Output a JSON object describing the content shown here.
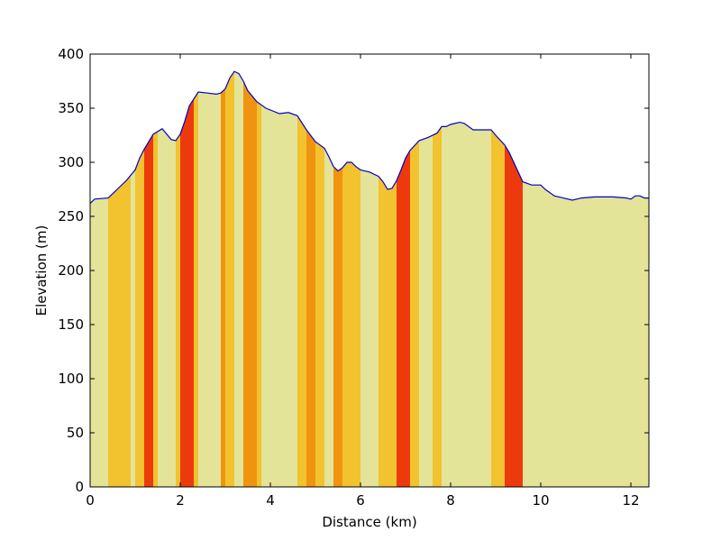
{
  "chart_data": {
    "type": "area",
    "title": "",
    "xlabel": "Distance (km)",
    "ylabel": "Elevation (m)",
    "xlim": [
      0,
      12.4
    ],
    "ylim": [
      0,
      400
    ],
    "xticks": [
      0,
      2,
      4,
      6,
      8,
      10,
      12
    ],
    "yticks": [
      0,
      50,
      100,
      150,
      200,
      250,
      300,
      350,
      400
    ],
    "grid": false,
    "line_color": "#0000cc",
    "profile": {
      "x": [
        0.0,
        0.1,
        0.4,
        0.6,
        0.8,
        1.0,
        1.1,
        1.2,
        1.4,
        1.6,
        1.8,
        1.9,
        2.0,
        2.1,
        2.2,
        2.4,
        2.6,
        2.8,
        2.9,
        3.0,
        3.1,
        3.2,
        3.3,
        3.4,
        3.5,
        3.7,
        3.9,
        4.2,
        4.4,
        4.6,
        4.8,
        5.0,
        5.2,
        5.3,
        5.4,
        5.5,
        5.6,
        5.7,
        5.8,
        5.9,
        6.0,
        6.2,
        6.4,
        6.5,
        6.6,
        6.7,
        6.8,
        6.9,
        7.0,
        7.1,
        7.3,
        7.5,
        7.7,
        7.8,
        7.9,
        8.0,
        8.2,
        8.3,
        8.5,
        8.7,
        8.9,
        9.0,
        9.2,
        9.3,
        9.5,
        9.6,
        9.8,
        10.0,
        10.1,
        10.3,
        10.5,
        10.7,
        10.9,
        11.2,
        11.4,
        11.6,
        11.9,
        12.0,
        12.1,
        12.2,
        12.3,
        12.4
      ],
      "y": [
        262,
        266,
        267,
        275,
        283,
        293,
        304,
        312,
        326,
        331,
        321,
        320,
        326,
        338,
        352,
        365,
        364,
        363,
        364,
        368,
        378,
        384,
        382,
        375,
        366,
        356,
        350,
        345,
        346,
        343,
        330,
        319,
        313,
        305,
        296,
        292,
        295,
        300,
        300,
        296,
        293,
        291,
        287,
        282,
        275,
        276,
        283,
        293,
        304,
        311,
        320,
        323,
        327,
        333,
        333,
        335,
        337,
        336,
        330,
        330,
        330,
        325,
        316,
        309,
        291,
        282,
        279,
        279,
        275,
        269,
        267,
        265,
        267,
        268,
        268,
        268,
        267,
        266,
        269,
        269,
        267,
        267
      ]
    },
    "bands": {
      "x_start": [
        0.0,
        0.4,
        0.9,
        1.0,
        1.2,
        1.4,
        1.5,
        1.9,
        2.0,
        2.3,
        2.4,
        2.9,
        3.0,
        3.2,
        3.4,
        3.7,
        3.8,
        4.6,
        4.8,
        5.0,
        5.2,
        5.4,
        5.6,
        6.0,
        6.4,
        6.8,
        7.1,
        7.3,
        7.6,
        7.8,
        8.9,
        9.2,
        9.6
      ],
      "x_end": [
        0.4,
        0.9,
        1.0,
        1.2,
        1.4,
        1.5,
        1.9,
        2.0,
        2.3,
        2.4,
        2.9,
        3.0,
        3.2,
        3.4,
        3.7,
        3.8,
        4.6,
        4.8,
        5.0,
        5.2,
        5.4,
        5.6,
        6.0,
        6.4,
        6.8,
        7.1,
        7.3,
        7.6,
        7.8,
        8.9,
        9.2,
        9.6,
        12.4
      ],
      "color": [
        "#e3e498",
        "#f2c22f",
        "#e3e498",
        "#f2c22f",
        "#ec3a0c",
        "#f2c22f",
        "#e3e498",
        "#f2c22f",
        "#ec3a0c",
        "#f2c22f",
        "#e3e498",
        "#f0930f",
        "#f2c22f",
        "#e3e498",
        "#f0930f",
        "#f2c22f",
        "#e3e498",
        "#f2c22f",
        "#f0930f",
        "#f2c22f",
        "#e3e498",
        "#f0930f",
        "#f2c22f",
        "#e3e498",
        "#f2c22f",
        "#ec3a0c",
        "#f2c22f",
        "#e3e498",
        "#f2c22f",
        "#e3e498",
        "#f2c22f",
        "#ec3a0c",
        "#e3e498"
      ]
    }
  }
}
